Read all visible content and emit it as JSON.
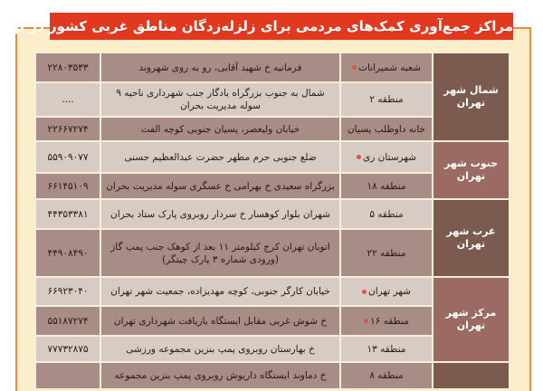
{
  "title": "مراکز جمع‌آوری کمک‌های مردمی برای زلزله‌زدگان مناطق غربی کشور در تهران",
  "colors": {
    "title_bg": "#e0391f",
    "frame_border": "#ef8a3c",
    "frame_bg": "#fdeecb",
    "region_dark": "#7b5b50",
    "region_mid": "#9b6a62",
    "row_dark": "#a88c86",
    "row_light": "#d6ccc3",
    "bullet": "#e0514a"
  },
  "regions": [
    {
      "name": "شمال شهر تهران",
      "rows": [
        {
          "place": "شعبه شمیرانات",
          "bullet": true,
          "address": "فرمانیه خ شهید آقایی، رو به روی شهروند",
          "phone": "۲۲۸۰۳۵۳۳"
        },
        {
          "place": "منطقه ۲",
          "bullet": false,
          "address": "شمال به جنوب بزرگراه یادگار جنب شهرداری ناحیه ۹ سوله مدیریت بحران",
          "phone": "...."
        },
        {
          "place": "خانه داوطلب پسیان",
          "bullet": false,
          "address": "خیابان ولیعصر، پسیان جنوبی کوچه الفت",
          "phone": "۲۲۶۶۷۲۷۴"
        }
      ]
    },
    {
      "name": "جنوب شهر تهران",
      "rows": [
        {
          "place": "شهرستان ری",
          "bullet": true,
          "address": "ضلع جنوبی حرم مطهر حضرت عبدالعظیم حسنی",
          "phone": "۵۵۹۰۹۰۷۷"
        },
        {
          "place": "منطقه ۱۸",
          "bullet": false,
          "address": "بزرگراه سعیدی خ بهرامی خ عسگری سوله مدیریت بحران",
          "phone": "۶۶۱۴۵۱۰۹"
        }
      ]
    },
    {
      "name": "غرب شهر تهران",
      "rows": [
        {
          "place": "منطقه ۵",
          "bullet": false,
          "address": "شهران بلوار کوهسار خ سردار روبروی پارک ستاد بحران",
          "phone": "۴۴۳۵۳۳۸۱"
        },
        {
          "place": "منطقه ۲۲",
          "bullet": false,
          "address": "اتوبان تهران کرج کیلومتر ۱۱ بعد از کوهک جنب پمپ گاز (ورودی شماره ۳ پارک چیتگر)",
          "phone": "۴۴۹۰۸۴۹۰"
        }
      ]
    },
    {
      "name": "مرکز شهر تهران",
      "rows": [
        {
          "place": "شهر تهران",
          "bullet": true,
          "address": "خیابان کارگر جنوبی، کوچه مهدیزاده، جمعیت شهر تهران",
          "phone": "۶۶۹۲۳۰۴۰"
        },
        {
          "place": "منطقه ۱۶",
          "bullet": true,
          "address": "خ شوش غربی مقابل ایستگاه بازیافت شهرداری تهران",
          "phone": "۵۵۱۸۷۲۷۴"
        },
        {
          "place": "منطقه ۱۳",
          "bullet": false,
          "address": "خ بهارستان روبروی پمپ بنزین مجموعه ورزشی",
          "phone": "۷۷۷۳۲۸۷۵"
        }
      ]
    },
    {
      "name": "",
      "rows": [
        {
          "place": "منطقه ۸",
          "bullet": false,
          "address": "خ دماوند ایستگاه داریوش روبروی پمپ بنزین مجموعه",
          "phone": ""
        }
      ]
    }
  ]
}
